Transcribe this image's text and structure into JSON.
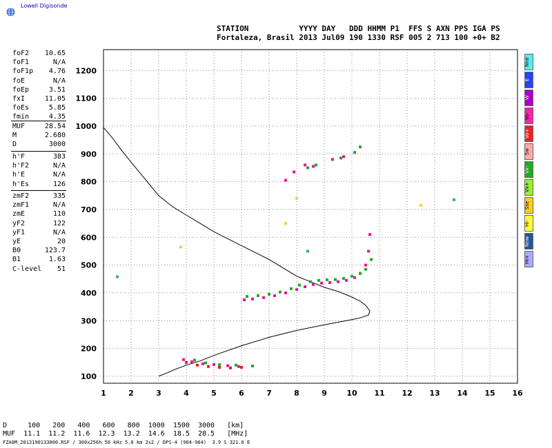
{
  "brand": {
    "logo_text": "Lowell Digisonde"
  },
  "header": {
    "line1": "STATION           YYYY DAY   DDD HHMM P1  FFS S AXN PPS IGA PS",
    "line2": "Fortaleza, Brasil 2013 Jul09 190 1330 RSF 005 2 713 100 +0+ B2"
  },
  "params": {
    "group1": [
      {
        "label": "foF2",
        "value": "10.65"
      },
      {
        "label": "foF1",
        "value": "N/A"
      },
      {
        "label": "foF1p",
        "value": "4.76"
      },
      {
        "label": "foE",
        "value": "N/A"
      },
      {
        "label": "foEp",
        "value": "3.51"
      },
      {
        "label": "fxI",
        "value": "11.05"
      },
      {
        "label": "foEs",
        "value": "5.85"
      },
      {
        "label": "fmin",
        "value": "4.35"
      }
    ],
    "group2": [
      {
        "label": "MUF",
        "value": "28.54"
      },
      {
        "label": "M",
        "value": "2.680"
      },
      {
        "label": "D",
        "value": "3000"
      }
    ],
    "group3": [
      {
        "label": "h'F",
        "value": "383"
      },
      {
        "label": "h'F2",
        "value": "N/A"
      },
      {
        "label": "h'E",
        "value": "N/A"
      },
      {
        "label": "h'Es",
        "value": "126"
      }
    ],
    "group4": [
      {
        "label": "zmF2",
        "value": "335"
      },
      {
        "label": "zmF1",
        "value": "N/A"
      },
      {
        "label": "zmE",
        "value": "110"
      },
      {
        "label": "yF2",
        "value": "122"
      },
      {
        "label": "yF1",
        "value": "N/A"
      },
      {
        "label": "yE",
        "value": "20"
      },
      {
        "label": "B0",
        "value": "123.7"
      },
      {
        "label": "B1",
        "value": "1.63"
      },
      {
        "label": "C-level",
        "value": "51"
      }
    ]
  },
  "legend": [
    {
      "label": "Nne",
      "color": "#55eeee"
    },
    {
      "label": "E",
      "color": "#2244ff"
    },
    {
      "label": "W",
      "color": "#aa00cc"
    },
    {
      "label": "Vo-",
      "color": "#ff22aa"
    },
    {
      "label": "Vo+",
      "color": "#ee2222"
    },
    {
      "label": "Sw",
      "color": "#ffaaaa"
    },
    {
      "label": "Vx-",
      "color": "#22aa22"
    },
    {
      "label": "Vx+",
      "color": "#99ee33"
    },
    {
      "label": "Sse",
      "color": "#ffcc22"
    },
    {
      "label": "Hi-",
      "color": "#ffff33"
    },
    {
      "label": "Nnw",
      "color": "#225599"
    },
    {
      "label": "Hi+",
      "color": "#aaaaff"
    }
  ],
  "footer": {
    "line1": "D     100   200   400   600   800  1000  1500  3000   [km]",
    "line2": "MUF  11.1  11.2  11.6  12.3  13.2  14.6  18.5  28.5   [MHz]",
    "line3": "FZA0M_2013190133000.RSF / 300x256h 50 kHz 5.0 km 2x2 / DPS-4 (904-904)  3.9 S 321.6 E"
  },
  "chart_data": {
    "type": "scatter",
    "x_ticks": [
      1,
      2,
      3,
      4,
      5,
      6,
      7,
      8,
      9,
      10,
      11,
      12,
      13,
      14,
      15,
      16
    ],
    "y_ticks": [
      100,
      200,
      300,
      400,
      500,
      600,
      700,
      800,
      900,
      1000,
      1100,
      1200
    ],
    "xlim": [
      1,
      16
    ],
    "ylim": [
      75,
      1275
    ],
    "grid": true,
    "profile_curve": {
      "x": [
        1.0,
        1.3,
        1.6,
        2.0,
        2.5,
        3.0,
        3.5,
        4.0,
        4.5,
        5.0,
        5.5,
        6.0,
        6.5,
        7.0,
        7.5,
        8.0,
        8.5,
        9.0,
        9.5,
        10.0,
        10.3,
        10.5,
        10.65,
        10.6,
        10.3,
        9.8,
        9.0,
        8.0,
        7.0,
        6.0,
        5.0,
        4.5,
        4.0,
        3.6,
        3.3,
        3.0
      ],
      "y": [
        995,
        960,
        920,
        870,
        810,
        750,
        710,
        680,
        650,
        620,
        595,
        570,
        545,
        520,
        490,
        460,
        440,
        420,
        405,
        385,
        370,
        355,
        335,
        320,
        310,
        300,
        285,
        265,
        240,
        210,
        175,
        155,
        140,
        125,
        112,
        100
      ]
    },
    "traces": [
      {
        "name": "Vo-",
        "color": "#ee1199",
        "x": [
          6.1,
          6.4,
          6.8,
          7.2,
          7.6,
          8.0,
          8.3,
          8.6,
          8.9,
          9.2,
          9.5,
          9.8,
          10.1,
          10.3,
          10.5,
          10.6,
          10.65,
          7.6,
          7.9,
          8.3,
          8.6,
          9.3,
          9.7,
          10.1,
          3.9,
          4.2,
          4.6,
          5.0,
          5.5,
          5.9
        ],
        "y": [
          375,
          378,
          383,
          390,
          400,
          412,
          422,
          430,
          435,
          437,
          440,
          445,
          455,
          470,
          500,
          550,
          610,
          805,
          835,
          860,
          855,
          880,
          890,
          905,
          160,
          152,
          145,
          142,
          138,
          135
        ]
      },
      {
        "name": "Vx-",
        "color": "#22aa22",
        "x": [
          6.2,
          6.6,
          7.0,
          7.4,
          7.8,
          8.1,
          8.5,
          8.8,
          9.1,
          9.4,
          9.7,
          10.0,
          10.3,
          10.5,
          10.7,
          8.4,
          8.7,
          9.6,
          10.1,
          10.3,
          4.3,
          4.7,
          5.2,
          5.8,
          6.4
        ],
        "y": [
          387,
          390,
          395,
          403,
          415,
          428,
          440,
          445,
          447,
          448,
          452,
          460,
          470,
          485,
          520,
          850,
          860,
          885,
          905,
          925,
          158,
          148,
          142,
          140,
          137
        ]
      },
      {
        "name": "Vo+",
        "color": "#dd2222",
        "x": [
          4.0,
          4.4,
          4.8,
          5.2,
          5.6,
          6.0
        ],
        "y": [
          150,
          140,
          135,
          132,
          130,
          132
        ]
      },
      {
        "name": "Sse",
        "color": "#ffcc22",
        "x": [
          3.8,
          7.6,
          8.0,
          12.5
        ],
        "y": [
          565,
          650,
          740,
          715
        ]
      },
      {
        "name": "Nne",
        "color": "#33aaaa",
        "x": [
          1.5,
          8.4,
          13.7
        ],
        "y": [
          458,
          550,
          735
        ]
      }
    ]
  }
}
